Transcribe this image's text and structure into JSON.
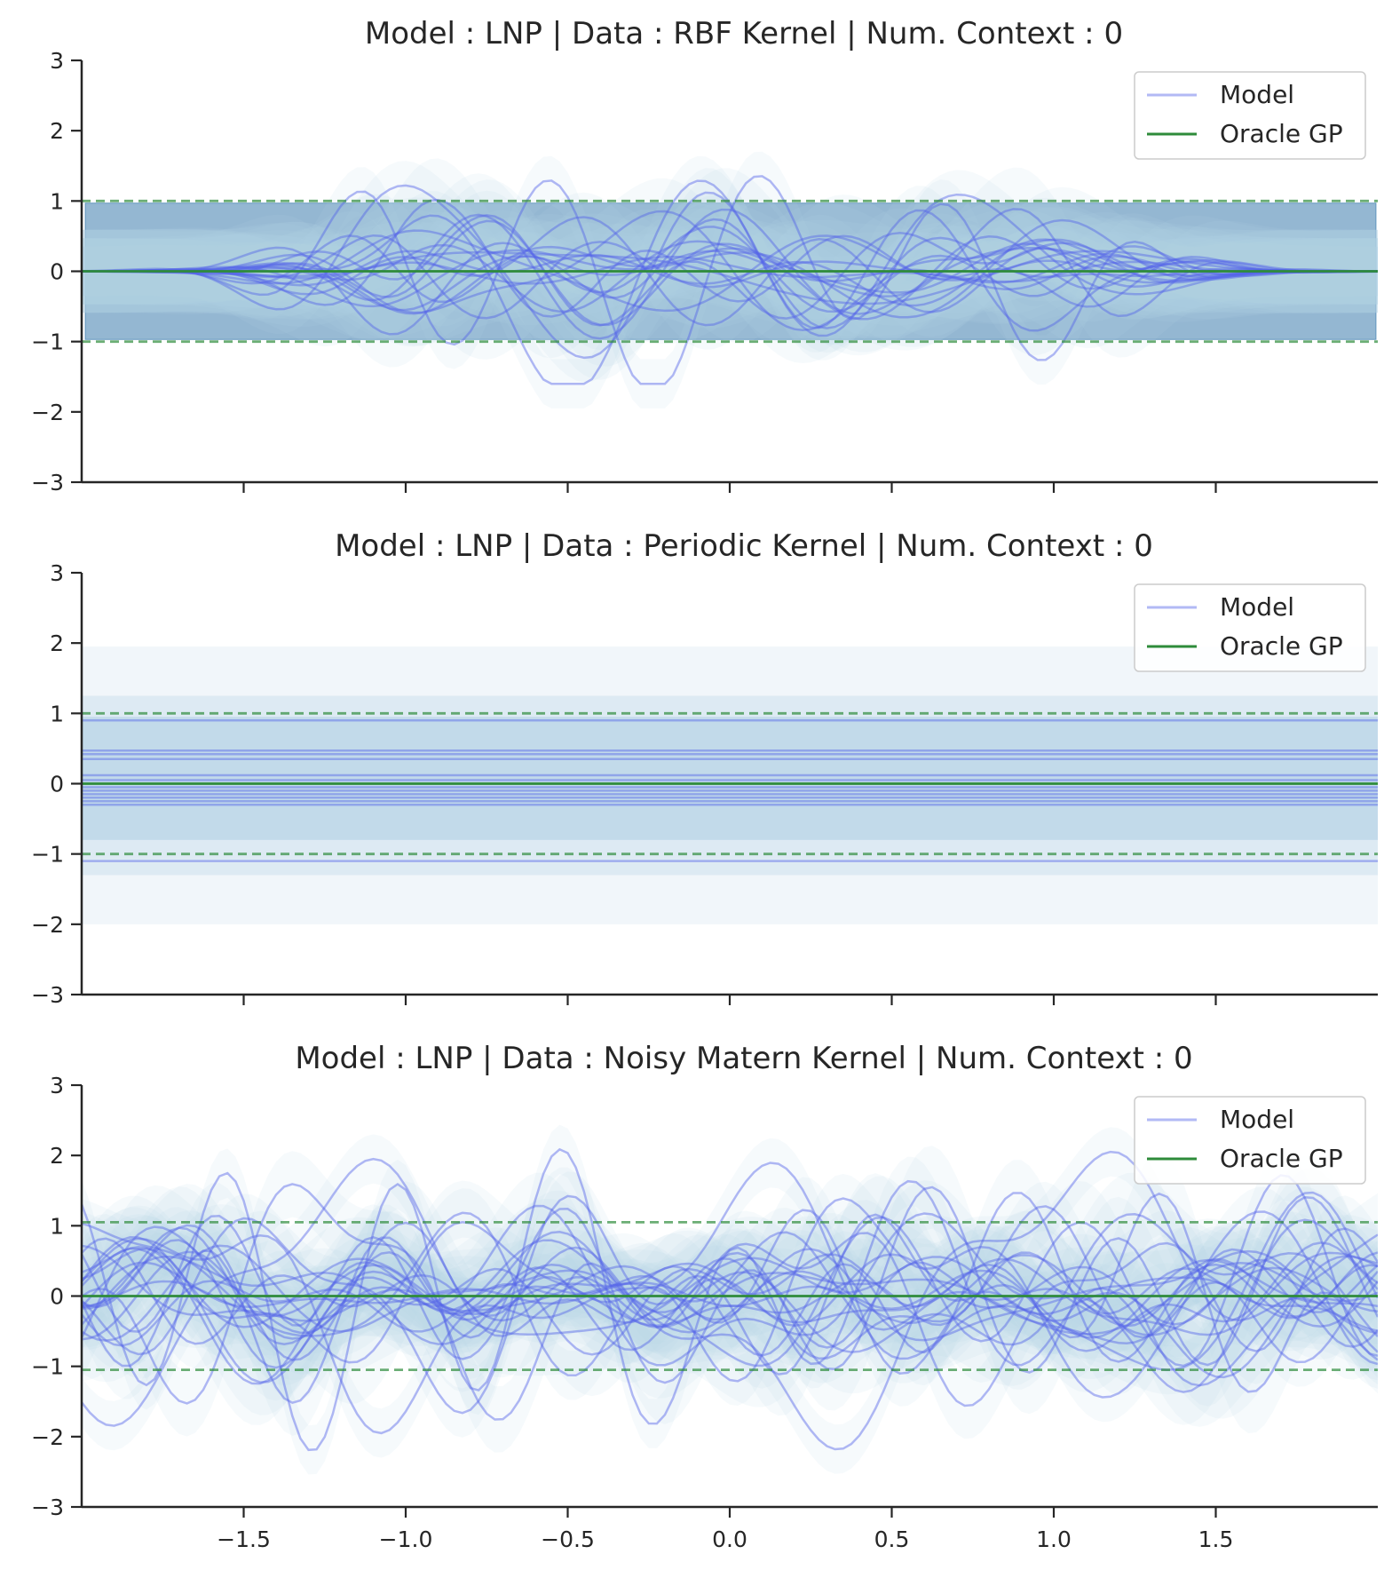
{
  "chart_data": [
    {
      "type": "line",
      "title": "Model : LNP | Data : RBF Kernel | Num. Context : 0",
      "xlabel": "",
      "ylabel": "",
      "xlim": [
        -2,
        2
      ],
      "ylim": [
        -3,
        3
      ],
      "xticks": [
        -1.5,
        -1.0,
        -0.5,
        0.0,
        0.5,
        1.0,
        1.5
      ],
      "xtick_labels": [
        "",
        "",
        "",
        "",
        "",
        "",
        ""
      ],
      "yticks": [
        -3,
        -2,
        -1,
        0,
        1,
        2,
        3
      ],
      "ytick_labels": [
        "−3",
        "−2",
        "−1",
        "0",
        "1",
        "2",
        "3"
      ],
      "grid": false,
      "legend": {
        "placement": "top-right",
        "entries": [
          "Model",
          "Oracle GP"
        ]
      },
      "colors": {
        "model": "#5563e8",
        "oracle": "#2e8b3a",
        "band": "#2a6fa6",
        "model_band": "#b7d3e6"
      },
      "oracle": {
        "mean": 0,
        "lower": -1.0,
        "upper": 1.0,
        "band_lower": -0.97,
        "band_upper": 0.97
      },
      "model_samples": {
        "count": 20,
        "kernel": "rbf",
        "envelope": "tapers to 0 at both ends",
        "approx_max_abs": 1.6,
        "seed": 7
      }
    },
    {
      "type": "line",
      "title": "Model : LNP | Data : Periodic Kernel | Num. Context : 0",
      "xlabel": "",
      "ylabel": "",
      "xlim": [
        -2,
        2
      ],
      "ylim": [
        -3,
        3
      ],
      "xticks": [
        -1.5,
        -1.0,
        -0.5,
        0.0,
        0.5,
        1.0,
        1.5
      ],
      "xtick_labels": [
        "",
        "",
        "",
        "",
        "",
        "",
        ""
      ],
      "yticks": [
        -3,
        -2,
        -1,
        0,
        1,
        2,
        3
      ],
      "ytick_labels": [
        "−3",
        "−2",
        "−1",
        "0",
        "1",
        "2",
        "3"
      ],
      "grid": false,
      "legend": {
        "placement": "top-right",
        "entries": [
          "Model",
          "Oracle GP"
        ]
      },
      "colors": {
        "model": "#5563e8",
        "oracle": "#2e8b3a",
        "band": "#2a6fa6",
        "model_band": "#b7d3e6"
      },
      "oracle": {
        "mean": 0,
        "lower": -1.0,
        "upper": 1.0
      },
      "model_samples": {
        "kernel": "constant",
        "levels": [
          0.9,
          0.47,
          0.42,
          0.35,
          0.12,
          0.05,
          -0.05,
          -0.1,
          -0.15,
          -0.2,
          -0.25,
          -0.3,
          -1.1
        ],
        "outer_band": [
          -2.0,
          1.95
        ]
      }
    },
    {
      "type": "line",
      "title": "Model : LNP | Data : Noisy Matern Kernel | Num. Context : 0",
      "xlabel": "",
      "ylabel": "",
      "xlim": [
        -2,
        2
      ],
      "ylim": [
        -3,
        3
      ],
      "xticks": [
        -1.5,
        -1.0,
        -0.5,
        0.0,
        0.5,
        1.0,
        1.5
      ],
      "xtick_labels": [
        "−1.5",
        "−1.0",
        "−0.5",
        "0.0",
        "0.5",
        "1.0",
        "1.5"
      ],
      "yticks": [
        -3,
        -2,
        -1,
        0,
        1,
        2,
        3
      ],
      "ytick_labels": [
        "−3",
        "−2",
        "−1",
        "0",
        "1",
        "2",
        "3"
      ],
      "grid": false,
      "legend": {
        "placement": "top-right",
        "entries": [
          "Model",
          "Oracle GP"
        ]
      },
      "colors": {
        "model": "#5563e8",
        "oracle": "#2e8b3a",
        "band": "#2a6fa6",
        "model_band": "#b7d3e6"
      },
      "oracle": {
        "mean": 0,
        "lower": -1.05,
        "upper": 1.05
      },
      "model_samples": {
        "count": 24,
        "kernel": "matern",
        "envelope": "uniform",
        "approx_max_abs": 2.6,
        "seed": 19
      }
    }
  ]
}
